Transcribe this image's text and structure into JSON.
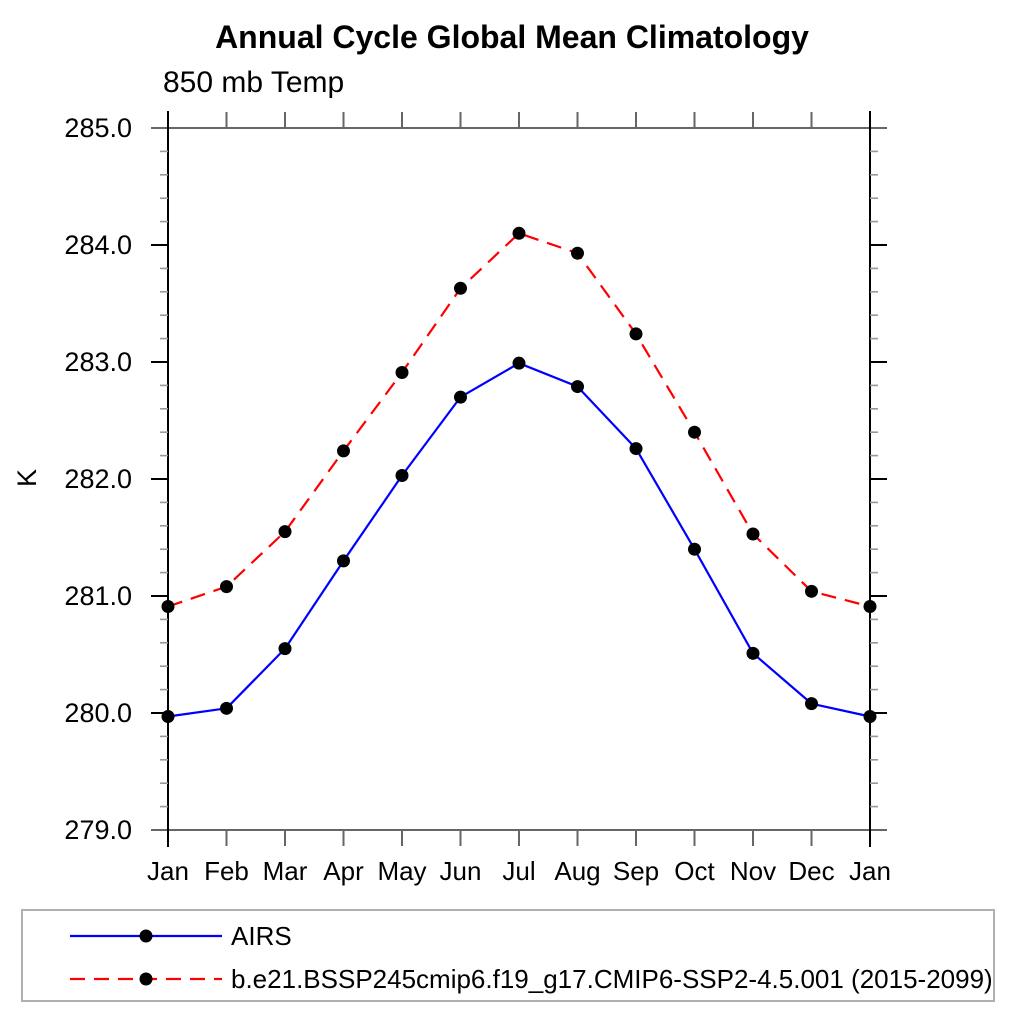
{
  "chart_data": {
    "type": "line",
    "title": "Annual Cycle Global Mean Climatology",
    "subtitle": "850 mb Temp",
    "xlabel": "",
    "ylabel": "K",
    "ylim": [
      279.0,
      285.0
    ],
    "y_major_step": 1.0,
    "y_minor_step": 0.2,
    "y_tick_labels": [
      "279.0",
      "280.0",
      "281.0",
      "282.0",
      "283.0",
      "284.0",
      "285.0"
    ],
    "grid": false,
    "categories": [
      "Jan",
      "Feb",
      "Mar",
      "Apr",
      "May",
      "Jun",
      "Jul",
      "Aug",
      "Sep",
      "Oct",
      "Nov",
      "Dec",
      "Jan"
    ],
    "series": [
      {
        "name": "AIRS",
        "line_color": "#0000ff",
        "line_style": "solid",
        "marker": "filled-circle",
        "marker_color": "#000000",
        "values": [
          279.97,
          280.04,
          280.55,
          281.3,
          282.03,
          282.7,
          282.99,
          282.79,
          282.26,
          281.4,
          280.51,
          280.08,
          279.97
        ]
      },
      {
        "name": "b.e21.BSSP245cmip6.f19_g17.CMIP6-SSP2-4.5.001 (2015-2099)",
        "line_color": "#ff0000",
        "line_style": "dashed",
        "marker": "filled-circle",
        "marker_color": "#000000",
        "values": [
          280.91,
          281.08,
          281.55,
          282.24,
          282.91,
          283.63,
          284.1,
          283.93,
          283.24,
          282.4,
          281.53,
          281.04,
          280.91
        ]
      }
    ],
    "legend": {
      "position": "bottom-left"
    }
  }
}
